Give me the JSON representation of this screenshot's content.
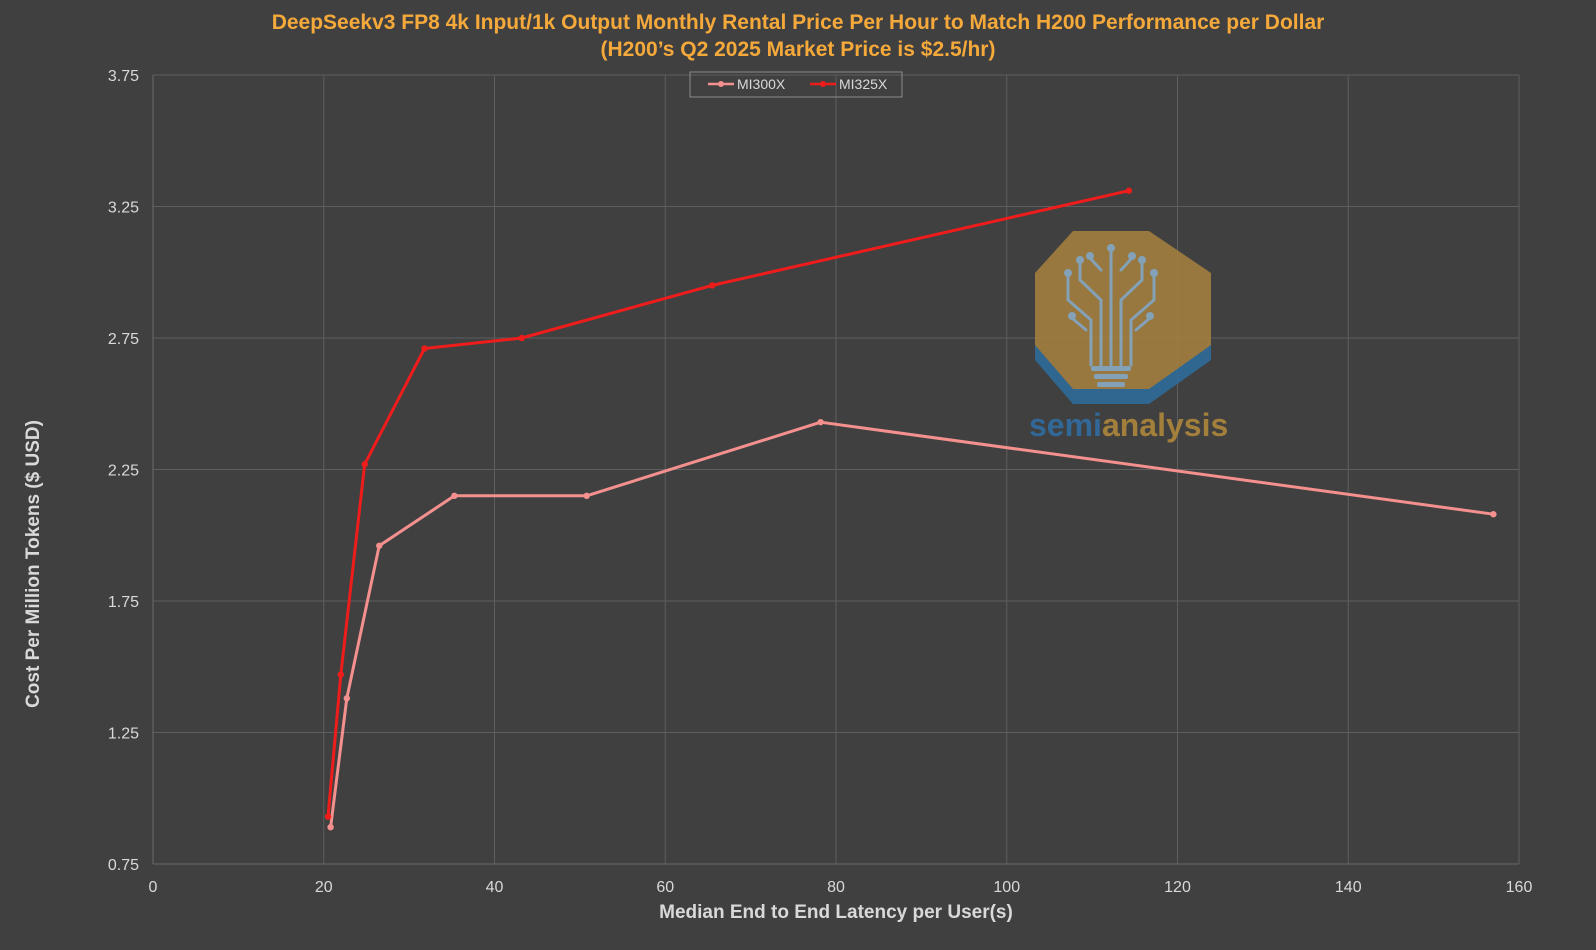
{
  "chart_data": {
    "type": "line",
    "title": "DeepSeekv3 FP8 4k Input/1k Output Monthly Rental Price Per Hour to Match H200 Performance per Dollar",
    "subtitle": "(H200’s Q2 2025 Market Price is $2.5/hr)",
    "xlabel": "Median End to End Latency per User(s)",
    "ylabel": "Cost Per Million Tokens ($ USD)",
    "xlim": [
      0,
      160
    ],
    "ylim": [
      0.75,
      3.75
    ],
    "xticks": [
      0,
      20,
      40,
      60,
      80,
      100,
      120,
      140,
      160
    ],
    "yticks": [
      0.75,
      1.25,
      1.75,
      2.25,
      2.75,
      3.25,
      3.75
    ],
    "ytick_labels": [
      "0.75",
      "1.25",
      "1.75",
      "2.25",
      "2.75",
      "3.25",
      "3.75"
    ],
    "grid": true,
    "legend_position": "top-center",
    "series": [
      {
        "name": "MI300X",
        "color": "#f4908e",
        "points": [
          {
            "x": 20.8,
            "y": 0.89
          },
          {
            "x": 22.7,
            "y": 1.38
          },
          {
            "x": 26.5,
            "y": 1.96
          },
          {
            "x": 35.3,
            "y": 2.15
          },
          {
            "x": 50.8,
            "y": 2.15
          },
          {
            "x": 78.2,
            "y": 2.43
          },
          {
            "x": 157.0,
            "y": 2.08
          }
        ]
      },
      {
        "name": "MI325X",
        "color": "#ef1c1c",
        "points": [
          {
            "x": 20.5,
            "y": 0.93
          },
          {
            "x": 22.0,
            "y": 1.47
          },
          {
            "x": 24.8,
            "y": 2.27
          },
          {
            "x": 31.8,
            "y": 2.71
          },
          {
            "x": 43.2,
            "y": 2.75
          },
          {
            "x": 65.5,
            "y": 2.95
          },
          {
            "x": 114.3,
            "y": 3.31
          }
        ]
      }
    ]
  },
  "watermark": {
    "text_part1": "semi",
    "text_part2": "analysis",
    "color_part1": "#2f6fa8",
    "color_part2": "#b58a3c"
  }
}
